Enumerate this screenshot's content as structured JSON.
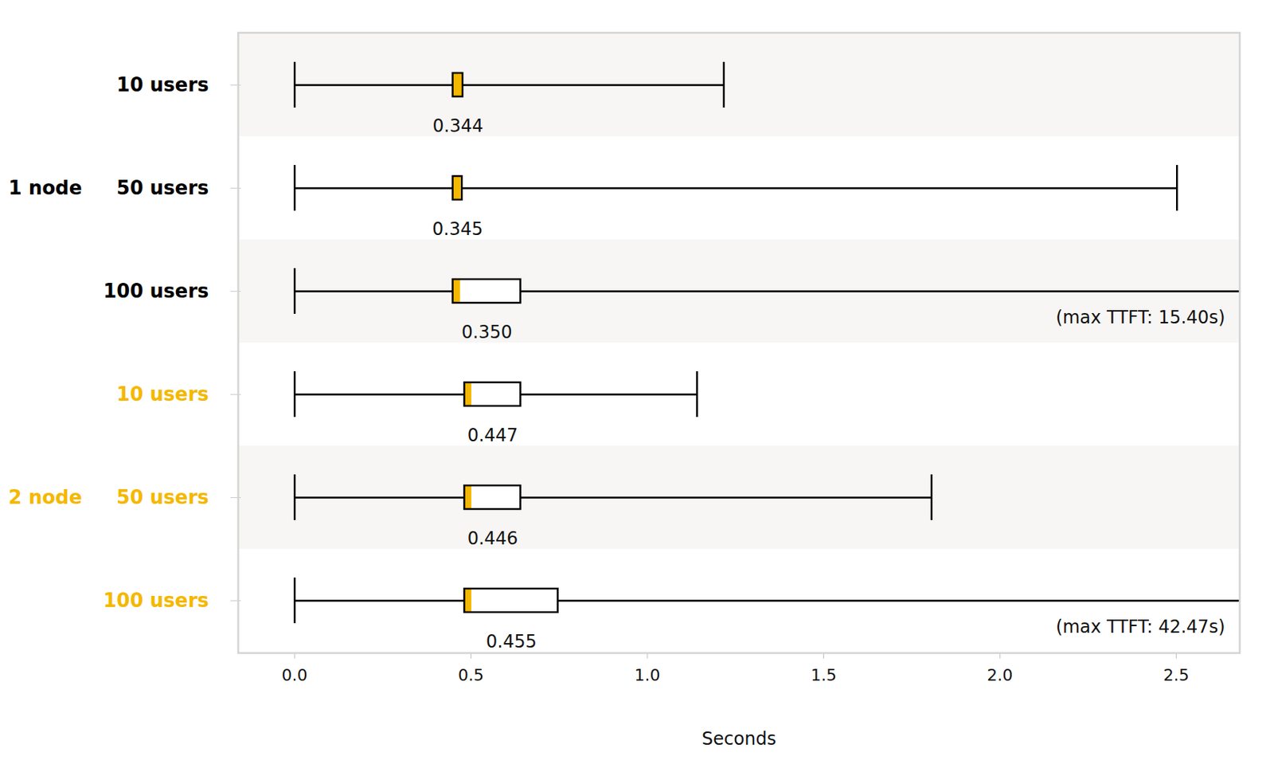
{
  "chart_data": {
    "type": "boxplot",
    "orientation": "horizontal",
    "xlabel": "Seconds",
    "xlim": [
      -0.16,
      2.68
    ],
    "xticks": [
      {
        "value": 0,
        "label": "0.0"
      },
      0.5,
      {
        "value": 1,
        "label": "1.0"
      },
      1.5,
      {
        "value": 2,
        "label": "2.0"
      },
      2.5
    ],
    "color": "#f5b800",
    "groups": [
      {
        "name": "1 node",
        "color": "#000000"
      },
      {
        "name": "2 node",
        "color": "#f5b800"
      }
    ],
    "rows": [
      {
        "group": "1 node",
        "category": "10 users",
        "min": 0,
        "q1": 0.449,
        "median": 0.475,
        "q3": 0.477,
        "max": 1.217,
        "box_label": "0.344"
      },
      {
        "group": "1 node",
        "category": "50 users",
        "min": 0,
        "q1": 0.449,
        "median": 0.472,
        "q3": 0.475,
        "max": 2.502,
        "box_label": "0.345"
      },
      {
        "group": "1 node",
        "category": "100 users",
        "min": 0,
        "q1": 0.449,
        "median": 0.47,
        "q3": 0.641,
        "max": 15.4,
        "box_label": "0.350",
        "note": "(max TTFT: 15.40s)"
      },
      {
        "group": "2 node",
        "category": "10 users",
        "min": 0,
        "q1": 0.482,
        "median": 0.502,
        "q3": 0.641,
        "max": 1.141,
        "box_label": "0.447"
      },
      {
        "group": "2 node",
        "category": "50 users",
        "min": 0,
        "q1": 0.482,
        "median": 0.502,
        "q3": 0.641,
        "max": 1.806,
        "box_label": "0.446"
      },
      {
        "group": "2 node",
        "category": "100 users",
        "min": 0,
        "q1": 0.482,
        "median": 0.502,
        "q3": 0.747,
        "max": 42.47,
        "box_label": "0.455",
        "note": "(max TTFT: 42.47s)"
      }
    ]
  }
}
